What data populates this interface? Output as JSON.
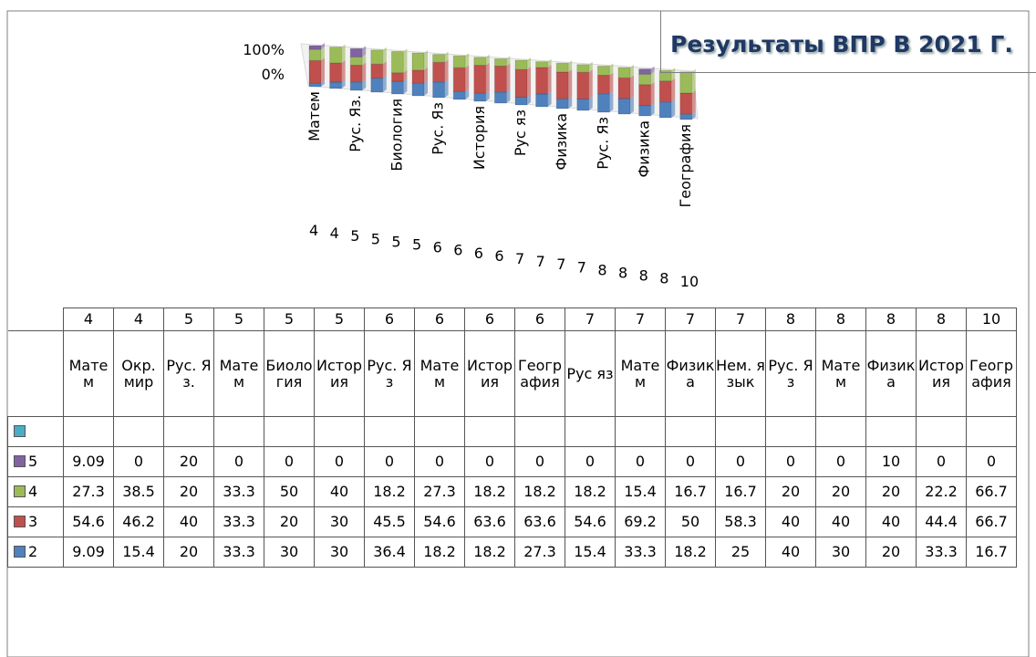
{
  "chart_data": {
    "type": "bar",
    "stacked_percent": true,
    "title": "Результаты ВПР В 2021 Г.",
    "category_groups": [
      4,
      4,
      5,
      5,
      5,
      5,
      6,
      6,
      6,
      6,
      7,
      7,
      7,
      7,
      8,
      8,
      8,
      8,
      10
    ],
    "categories": [
      "Матем",
      "Окр. мир",
      "Рус. Яз.",
      "Матем",
      "Биология",
      "История",
      "Рус. Яз",
      "Матем",
      "История",
      "География",
      "Рус яз",
      "Матем",
      "Физика",
      "Нем. язык",
      "Рус. Яз",
      "Матем",
      "Физика",
      "История",
      "География"
    ],
    "series": [
      {
        "color": "#4bacc6",
        "values": [
          null,
          null,
          null,
          null,
          null,
          null,
          null,
          null,
          null,
          null,
          null,
          null,
          null,
          null,
          null,
          null,
          null,
          null,
          null
        ]
      },
      {
        "name": "5",
        "color": "#8064a2",
        "values": [
          9.09,
          0,
          20,
          0,
          0,
          0,
          0,
          0,
          0,
          0,
          0,
          0,
          0,
          0,
          0,
          0,
          10,
          0,
          0
        ]
      },
      {
        "name": "4",
        "color": "#9bbb59",
        "values": [
          27.3,
          38.5,
          20,
          33.3,
          50,
          40,
          18.2,
          27.3,
          18.2,
          18.2,
          18.2,
          15.4,
          16.7,
          16.7,
          20,
          20,
          20,
          22.2,
          66.7
        ]
      },
      {
        "name": "3",
        "color": "#c0504d",
        "values": [
          54.6,
          46.2,
          40,
          33.3,
          20,
          30,
          45.5,
          54.6,
          63.6,
          63.6,
          54.6,
          69.2,
          50,
          58.3,
          40,
          40,
          40,
          44.4,
          66.7
        ]
      },
      {
        "name": "2",
        "color": "#4f81bd",
        "values": [
          9.09,
          15.4,
          20,
          33.3,
          30,
          30,
          36.4,
          18.2,
          18.2,
          27.3,
          15.4,
          33.3,
          18.2,
          25,
          40,
          30,
          20,
          33.3,
          16.7
        ]
      }
    ],
    "ylim": [
      0,
      100
    ],
    "yticks": [
      {
        "value": 0,
        "label": "0%"
      },
      {
        "value": 100,
        "label": "100%"
      }
    ]
  }
}
